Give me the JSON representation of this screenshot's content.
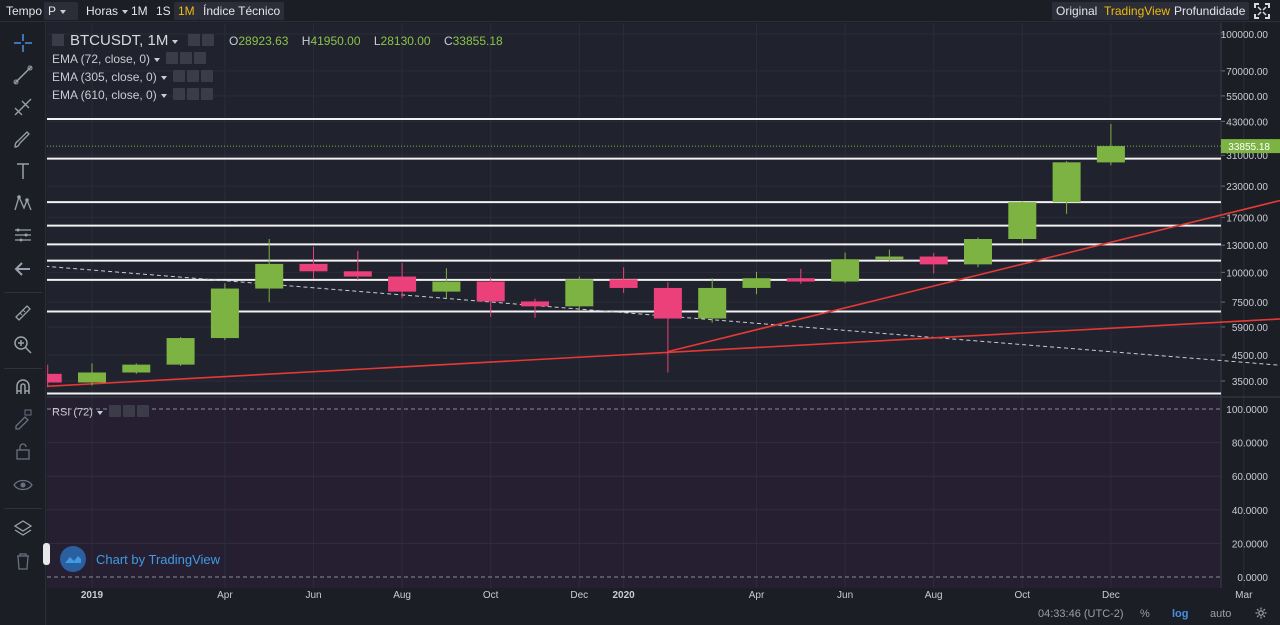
{
  "toolbar": {
    "tempo_label": "Tempo",
    "period_value": "P",
    "horas_label": "Horas",
    "interval_1m_lower": "1M",
    "interval_1s": "1S",
    "interval_1m_active": "1M",
    "indicators_label": "Índice Técnico",
    "view_original": "Original",
    "view_tradingview": "TradingView",
    "view_depth": "Profundidade",
    "active_color": "#f0b90b"
  },
  "sidebar": {
    "icons": [
      "crosshair-icon",
      "trend-line-icon",
      "fib-icon",
      "brush-icon",
      "text-icon",
      "pattern-icon",
      "measure-icon",
      "back-arrow-icon",
      "ruler-icon",
      "zoom-icon",
      "magnet-icon",
      "lock-edit-icon",
      "lock-icon",
      "eye-icon",
      "layers-icon",
      "trash-icon"
    ]
  },
  "legend": {
    "symbol": "BTCUSDT, 1M",
    "o_label": "O",
    "o_value": "28923.63",
    "h_label": "H",
    "h_value": "41950.00",
    "l_label": "L",
    "l_value": "28130.00",
    "c_label": "C",
    "c_value": "33855.18",
    "ema1": "EMA (72, close, 0)",
    "ema2": "EMA (305, close, 0)",
    "ema3": "EMA (610, close, 0)",
    "rsi": "RSI (72)"
  },
  "watermark": {
    "text": "Chart by TradingView"
  },
  "bottom": {
    "time": "04:33:46 (UTC-2)",
    "percent": "%",
    "log": "log",
    "auto": "auto"
  },
  "chart_data": {
    "type": "candlestick",
    "scale": "log",
    "price_ticks": [
      100000,
      70000,
      55000,
      43000,
      31000,
      23000,
      17000,
      13000,
      10000,
      7500,
      5900,
      4500,
      3500
    ],
    "price_tick_labels": [
      "100000.00",
      "70000.00",
      "55000.00",
      "43000.00",
      "31000.00",
      "23000.00",
      "17000.00",
      "13000.00",
      "10000.00",
      "7500.00",
      "5900.00",
      "4500.00",
      "3500.00"
    ],
    "last_price": 33855.18,
    "last_price_label": "33855.18",
    "rsi_ticks": [
      100,
      80,
      60,
      40,
      20,
      0
    ],
    "rsi_tick_labels": [
      "100.0000",
      "80.0000",
      "60.0000",
      "40.0000",
      "20.0000",
      "0.0000"
    ],
    "time_labels": [
      {
        "label": "2019",
        "month": 1,
        "year": 2019,
        "bold": true
      },
      {
        "label": "Apr",
        "month": 4,
        "year": 2019
      },
      {
        "label": "Jun",
        "month": 6,
        "year": 2019
      },
      {
        "label": "Aug",
        "month": 8,
        "year": 2019
      },
      {
        "label": "Oct",
        "month": 10,
        "year": 2019
      },
      {
        "label": "Dec",
        "month": 12,
        "year": 2019
      },
      {
        "label": "2020",
        "month": 1,
        "year": 2020,
        "bold": true
      },
      {
        "label": "Apr",
        "month": 4,
        "year": 2020
      },
      {
        "label": "Jun",
        "month": 6,
        "year": 2020
      },
      {
        "label": "Aug",
        "month": 8,
        "year": 2020
      },
      {
        "label": "Oct",
        "month": 10,
        "year": 2020
      },
      {
        "label": "Dec",
        "month": 12,
        "year": 2020
      },
      {
        "label": "Mar",
        "month": 3,
        "year": 2021
      }
    ],
    "candles": [
      {
        "t": "2018-12",
        "o": 3750,
        "h": 4100,
        "l": 3300,
        "c": 3450
      },
      {
        "t": "2019-01",
        "o": 3450,
        "h": 4150,
        "l": 3350,
        "c": 3800
      },
      {
        "t": "2019-02",
        "o": 3800,
        "h": 4150,
        "l": 3750,
        "c": 4100
      },
      {
        "t": "2019-03",
        "o": 4100,
        "h": 5350,
        "l": 4050,
        "c": 5300
      },
      {
        "t": "2019-04",
        "o": 5300,
        "h": 9000,
        "l": 5200,
        "c": 8550
      },
      {
        "t": "2019-05",
        "o": 8550,
        "h": 13800,
        "l": 7500,
        "c": 10850
      },
      {
        "t": "2019-06",
        "o": 10850,
        "h": 12800,
        "l": 9400,
        "c": 10100
      },
      {
        "t": "2019-07",
        "o": 10100,
        "h": 12300,
        "l": 9300,
        "c": 9600
      },
      {
        "t": "2019-08",
        "o": 9600,
        "h": 10950,
        "l": 7800,
        "c": 8300
      },
      {
        "t": "2019-09",
        "o": 8300,
        "h": 10400,
        "l": 7800,
        "c": 9150
      },
      {
        "t": "2019-10",
        "o": 9150,
        "h": 9500,
        "l": 6500,
        "c": 7550
      },
      {
        "t": "2019-11",
        "o": 7550,
        "h": 7750,
        "l": 6450,
        "c": 7200
      },
      {
        "t": "2019-12",
        "o": 7200,
        "h": 9600,
        "l": 6900,
        "c": 9350
      },
      {
        "t": "2020-01",
        "o": 9350,
        "h": 10500,
        "l": 8200,
        "c": 8600
      },
      {
        "t": "2020-02",
        "o": 8600,
        "h": 9100,
        "l": 3800,
        "c": 6400
      },
      {
        "t": "2020-03",
        "o": 6400,
        "h": 9450,
        "l": 6150,
        "c": 8600
      },
      {
        "t": "2020-04",
        "o": 8600,
        "h": 10050,
        "l": 8100,
        "c": 9450
      },
      {
        "t": "2020-05",
        "o": 9450,
        "h": 10350,
        "l": 8950,
        "c": 9150
      },
      {
        "t": "2020-06",
        "o": 9150,
        "h": 12100,
        "l": 9000,
        "c": 11350
      },
      {
        "t": "2020-07",
        "o": 11350,
        "h": 12450,
        "l": 11100,
        "c": 11650
      },
      {
        "t": "2020-08",
        "o": 11650,
        "h": 12050,
        "l": 9900,
        "c": 10800
      },
      {
        "t": "2020-09",
        "o": 10800,
        "h": 14000,
        "l": 10500,
        "c": 13800
      },
      {
        "t": "2020-10",
        "o": 13800,
        "h": 19850,
        "l": 13200,
        "c": 19700
      },
      {
        "t": "2020-11",
        "o": 19700,
        "h": 29300,
        "l": 17600,
        "c": 28950
      },
      {
        "t": "2020-12",
        "o": 28923.63,
        "h": 41950,
        "l": 28130,
        "c": 33855.18
      }
    ],
    "horizontal_levels": [
      3100,
      6850,
      9300,
      11200,
      13100,
      15700,
      19700,
      30000,
      44000
    ],
    "trendlines": [
      {
        "style": "dashed",
        "color": "#c9ccd3",
        "from": {
          "t": "2018-11",
          "p": 10950
        },
        "to": {
          "t": "2021-04",
          "p": 4050
        }
      },
      {
        "style": "solid",
        "color": "#e53935",
        "from": {
          "t": "2018-11",
          "p": 3250
        },
        "to": {
          "t": "2021-04",
          "p": 6400
        }
      },
      {
        "style": "solid",
        "color": "#e53935",
        "from": {
          "t": "2020-02",
          "p": 4650
        },
        "to": {
          "t": "2021-04",
          "p": 20400
        }
      }
    ],
    "up_color": "#7cb342",
    "down_color": "#ec407a"
  }
}
